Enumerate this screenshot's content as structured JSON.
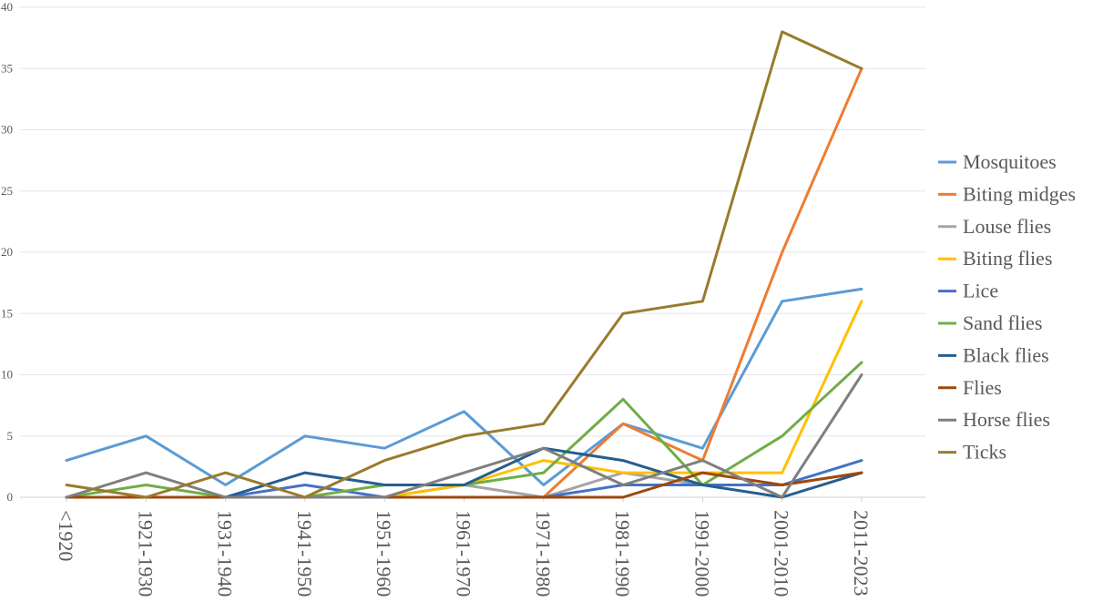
{
  "chart_data": {
    "type": "line",
    "title": "",
    "xlabel": "",
    "ylabel": "",
    "ylim": [
      0,
      40
    ],
    "yticks": [
      0,
      5,
      10,
      15,
      20,
      25,
      30,
      35,
      40
    ],
    "grid": true,
    "legend_position": "right",
    "categories": [
      "<1920",
      "1921-1930",
      "1931-1940",
      "1941-1950",
      "1951-1960",
      "1961-1970",
      "1971-1980",
      "1981-1990",
      "1991-2000",
      "2001-2010",
      "2011-2023"
    ],
    "series": [
      {
        "name": "Mosquitoes",
        "color": "#5b9bd5",
        "values": [
          3,
          5,
          1,
          5,
          4,
          7,
          1,
          6,
          4,
          16,
          17
        ]
      },
      {
        "name": "Biting midges",
        "color": "#ed7d31",
        "values": [
          0,
          0,
          0,
          0,
          0,
          0,
          0,
          6,
          3,
          20,
          35
        ]
      },
      {
        "name": "Louse flies",
        "color": "#a5a5a5",
        "values": [
          0,
          0,
          0,
          0,
          0,
          1,
          0,
          2,
          1,
          1,
          2
        ]
      },
      {
        "name": "Biting flies",
        "color": "#ffc000",
        "values": [
          0,
          0,
          0,
          0,
          0,
          1,
          3,
          2,
          2,
          2,
          16
        ]
      },
      {
        "name": "Lice",
        "color": "#4472c4",
        "values": [
          0,
          0,
          0,
          1,
          0,
          0,
          0,
          1,
          1,
          1,
          3
        ]
      },
      {
        "name": "Sand flies",
        "color": "#70ad47",
        "values": [
          0,
          1,
          0,
          0,
          1,
          1,
          2,
          8,
          1,
          5,
          11
        ]
      },
      {
        "name": "Black flies",
        "color": "#255e91",
        "values": [
          0,
          0,
          0,
          2,
          1,
          1,
          4,
          3,
          1,
          0,
          2
        ]
      },
      {
        "name": "Flies",
        "color": "#9e480e",
        "values": [
          0,
          0,
          0,
          0,
          0,
          0,
          0,
          0,
          2,
          1,
          2
        ]
      },
      {
        "name": "Horse flies",
        "color": "#7f7f7f",
        "values": [
          0,
          2,
          0,
          0,
          0,
          2,
          4,
          1,
          3,
          0,
          10
        ]
      },
      {
        "name": "Ticks",
        "color": "#997b2c",
        "values": [
          1,
          0,
          2,
          0,
          3,
          5,
          6,
          15,
          16,
          38,
          35
        ]
      }
    ]
  }
}
